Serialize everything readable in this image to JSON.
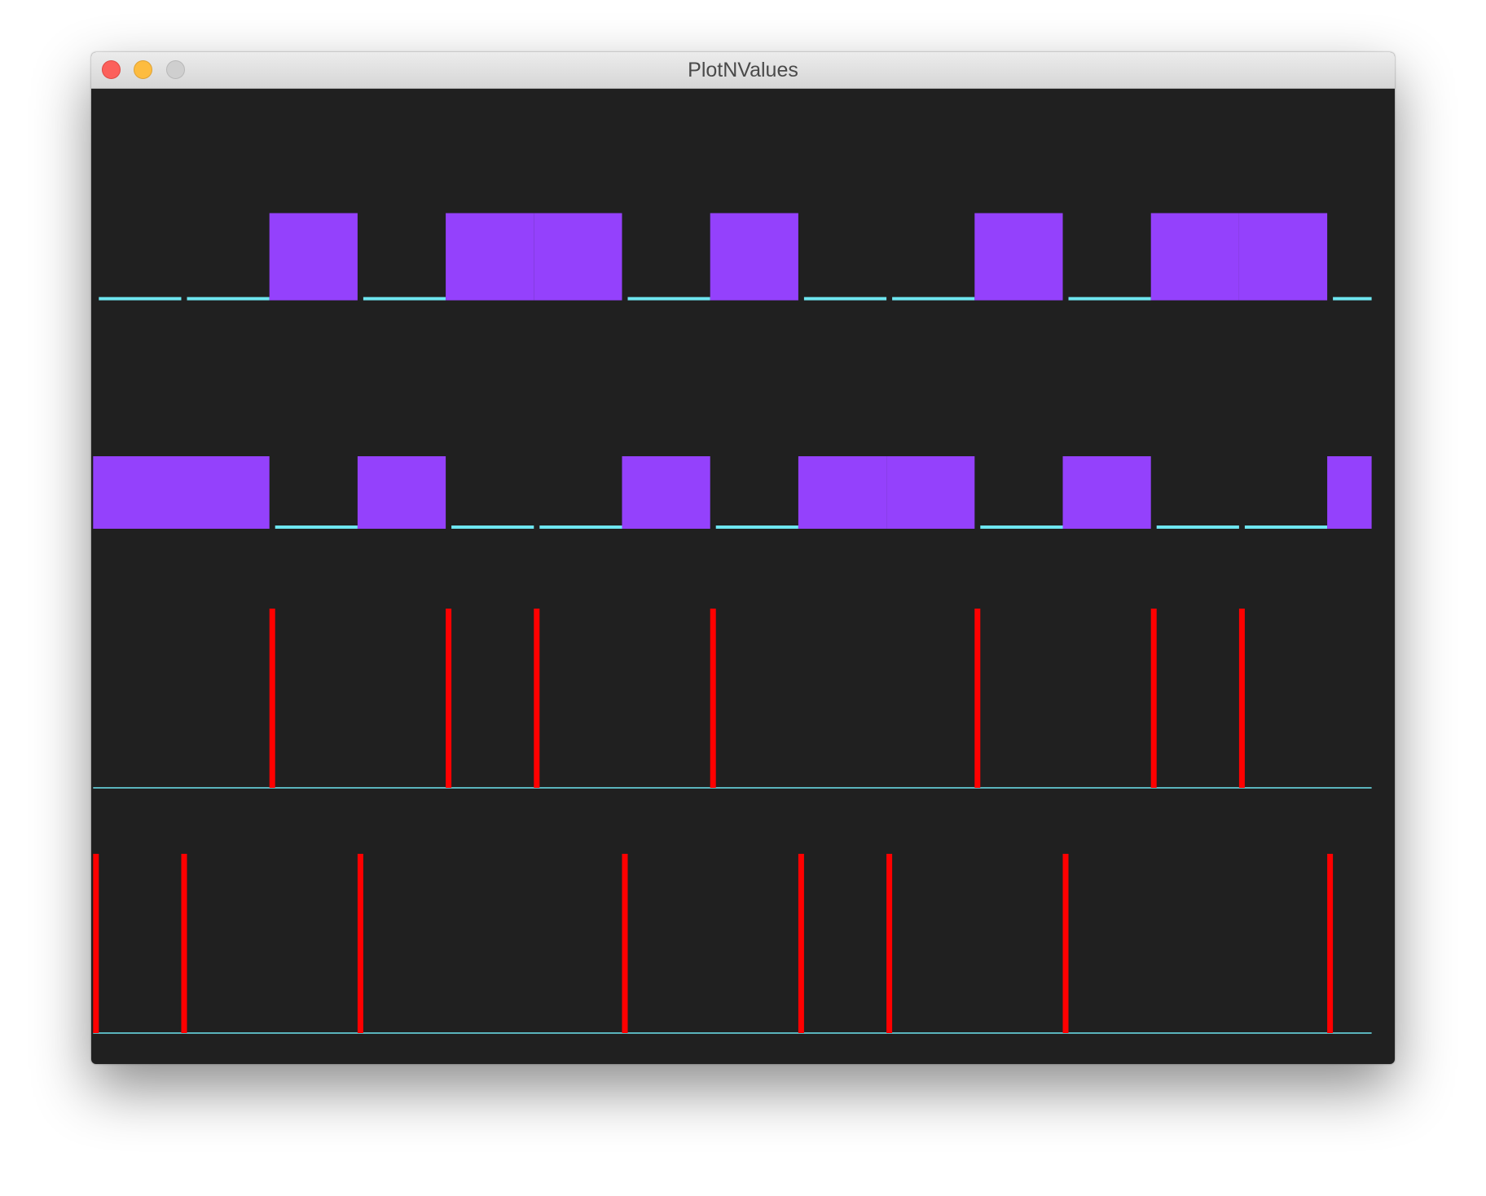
{
  "window": {
    "title": "PlotNValues"
  },
  "chart_data": [
    {
      "type": "step",
      "high_color": "#9441fc",
      "low_color": "#6ee6f0",
      "values": [
        0,
        0,
        1,
        0,
        1,
        1,
        0,
        1,
        0,
        0,
        1,
        0,
        1,
        1,
        0
      ]
    },
    {
      "type": "step",
      "high_color": "#9441fc",
      "low_color": "#6ee6f0",
      "values": [
        1,
        1,
        0,
        1,
        0,
        0,
        1,
        0,
        1,
        1,
        0,
        1,
        0,
        0,
        1
      ]
    },
    {
      "type": "impulse",
      "color": "#ff0000",
      "baseline_color": "#6ee6f0",
      "values": [
        0,
        0,
        1,
        0,
        1,
        1,
        0,
        1,
        0,
        0,
        1,
        0,
        1,
        1,
        0
      ]
    },
    {
      "type": "impulse",
      "color": "#ff0000",
      "baseline_color": "#6ee6f0",
      "values": [
        1,
        1,
        0,
        1,
        0,
        0,
        1,
        0,
        1,
        1,
        0,
        1,
        0,
        0,
        1
      ]
    }
  ]
}
